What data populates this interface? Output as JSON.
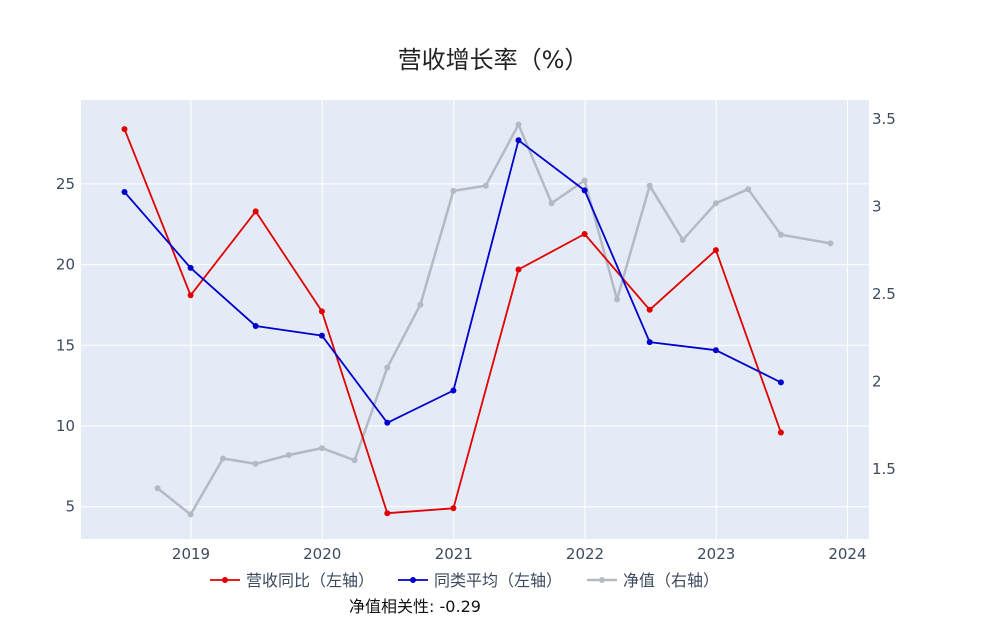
{
  "chart_data": {
    "type": "line",
    "title": "营收增长率（%）",
    "note": "净值相关性: -0.29",
    "xlabel": "",
    "ylabel": "",
    "x_ticks": [
      "2019",
      "2020",
      "2021",
      "2022",
      "2023",
      "2024"
    ],
    "x_range": [
      "2018-03-01",
      "2024-03-01"
    ],
    "y_left": {
      "range": [
        3,
        30.2
      ],
      "ticks": [
        5,
        10,
        15,
        20,
        25
      ]
    },
    "y_right": {
      "range": [
        1.1,
        3.61
      ],
      "ticks": [
        1.5,
        2,
        2.5,
        3,
        3.5
      ]
    },
    "grid": true,
    "legend_position": "bottom",
    "series": [
      {
        "name": "营收同比（左轴）",
        "axis": "left",
        "color": "#e00000",
        "x": [
          "2018-06-30",
          "2018-12-31",
          "2019-06-30",
          "2019-12-31",
          "2020-06-30",
          "2020-12-31",
          "2021-06-30",
          "2021-12-31",
          "2022-06-30",
          "2022-12-31",
          "2023-06-30"
        ],
        "y": [
          28.4,
          18.1,
          23.3,
          17.1,
          4.6,
          4.9,
          19.7,
          21.9,
          17.2,
          20.9,
          9.6
        ]
      },
      {
        "name": "同类平均（左轴）",
        "axis": "left",
        "color": "#0000cc",
        "x": [
          "2018-06-30",
          "2018-12-31",
          "2019-06-30",
          "2019-12-31",
          "2020-06-30",
          "2020-12-31",
          "2021-06-30",
          "2021-12-31",
          "2022-06-30",
          "2022-12-31",
          "2023-06-30"
        ],
        "y": [
          24.5,
          19.8,
          16.2,
          15.6,
          10.2,
          12.2,
          27.7,
          24.6,
          15.2,
          14.7,
          12.7
        ]
      },
      {
        "name": "净值（右轴）",
        "axis": "right",
        "color": "#b4bac4",
        "x": [
          "2018-09-30",
          "2018-12-31",
          "2019-03-31",
          "2019-06-30",
          "2019-09-30",
          "2019-12-31",
          "2020-03-31",
          "2020-06-30",
          "2020-09-30",
          "2020-12-31",
          "2021-03-31",
          "2021-06-30",
          "2021-09-30",
          "2021-12-31",
          "2022-03-31",
          "2022-06-30",
          "2022-09-30",
          "2022-12-31",
          "2023-03-31",
          "2023-06-30",
          "2023-11-15"
        ],
        "y": [
          1.39,
          1.24,
          1.56,
          1.53,
          1.58,
          1.62,
          1.55,
          2.08,
          2.44,
          3.09,
          3.12,
          3.47,
          3.02,
          3.15,
          2.47,
          3.12,
          2.81,
          3.02,
          3.1,
          2.84,
          2.79
        ]
      }
    ]
  }
}
